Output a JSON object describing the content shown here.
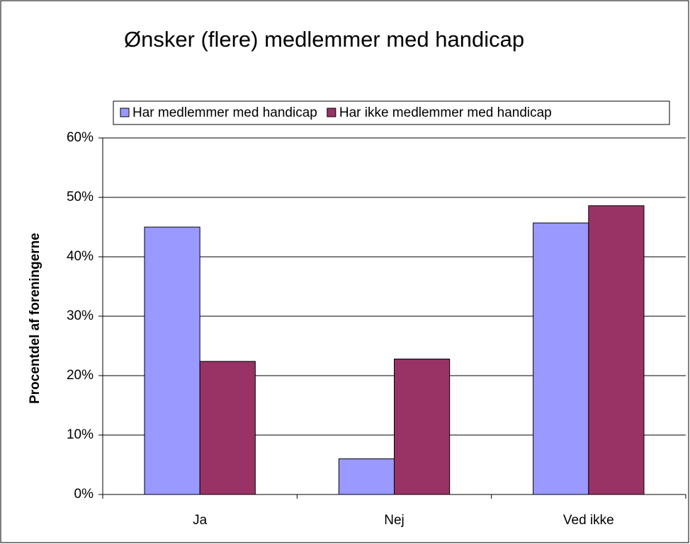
{
  "chart_data": {
    "type": "bar",
    "title": "Ønsker (flere) medlemmer med handicap",
    "y_label": "Procentdel af foreningerne",
    "categories": [
      "Ja",
      "Nej",
      "Ved ikke"
    ],
    "series": [
      {
        "name": "Har medlemmer med handicap",
        "color": "#9999ff",
        "values": [
          45.0,
          6.0,
          45.7
        ]
      },
      {
        "name": "Har ikke medlemmer med handicap",
        "color": "#993366",
        "values": [
          22.4,
          22.8,
          48.6
        ]
      }
    ],
    "ylim": [
      0,
      60
    ],
    "yticks": [
      {
        "value": 0,
        "label": "0%"
      },
      {
        "value": 10,
        "label": "10%"
      },
      {
        "value": 20,
        "label": "20%"
      },
      {
        "value": 30,
        "label": "30%"
      },
      {
        "value": 40,
        "label": "40%"
      },
      {
        "value": 50,
        "label": "50%"
      },
      {
        "value": 60,
        "label": "60%"
      }
    ],
    "grid": true,
    "legend": "top"
  }
}
